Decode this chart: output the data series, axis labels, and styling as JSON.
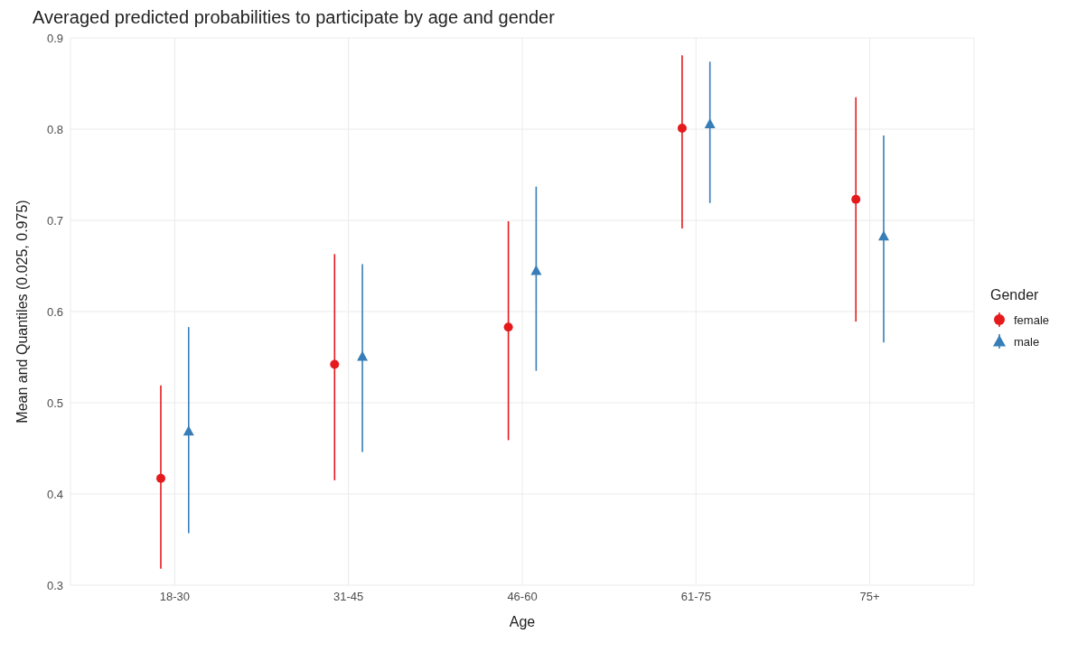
{
  "chart_data": {
    "type": "scatter",
    "title": "Averaged predicted probabilities to participate by age and gender",
    "xlabel": "Age",
    "ylabel": "Mean and Quantiles (0.025, 0.975)",
    "legend_title": "Gender",
    "categories": [
      "18-30",
      "31-45",
      "46-60",
      "61-75",
      "75+"
    ],
    "series": [
      {
        "name": "female",
        "color": "#e41a1c",
        "marker": "circle",
        "values": [
          0.417,
          0.542,
          0.583,
          0.801,
          0.723
        ],
        "errors": [
          [
            0.318,
            0.519
          ],
          [
            0.415,
            0.663
          ],
          [
            0.459,
            0.699
          ],
          [
            0.691,
            0.881
          ],
          [
            0.589,
            0.835
          ]
        ]
      },
      {
        "name": "male",
        "color": "#377eb8",
        "marker": "triangle",
        "values": [
          0.469,
          0.551,
          0.645,
          0.806,
          0.683
        ],
        "errors": [
          [
            0.357,
            0.583
          ],
          [
            0.446,
            0.652
          ],
          [
            0.535,
            0.737
          ],
          [
            0.719,
            0.874
          ],
          [
            0.566,
            0.793
          ]
        ]
      }
    ],
    "ylim": [
      0.3,
      0.9
    ],
    "yticks": [
      0.3,
      0.4,
      0.5,
      0.6,
      0.7,
      0.8,
      0.9
    ],
    "grid": true,
    "legend": "right"
  }
}
